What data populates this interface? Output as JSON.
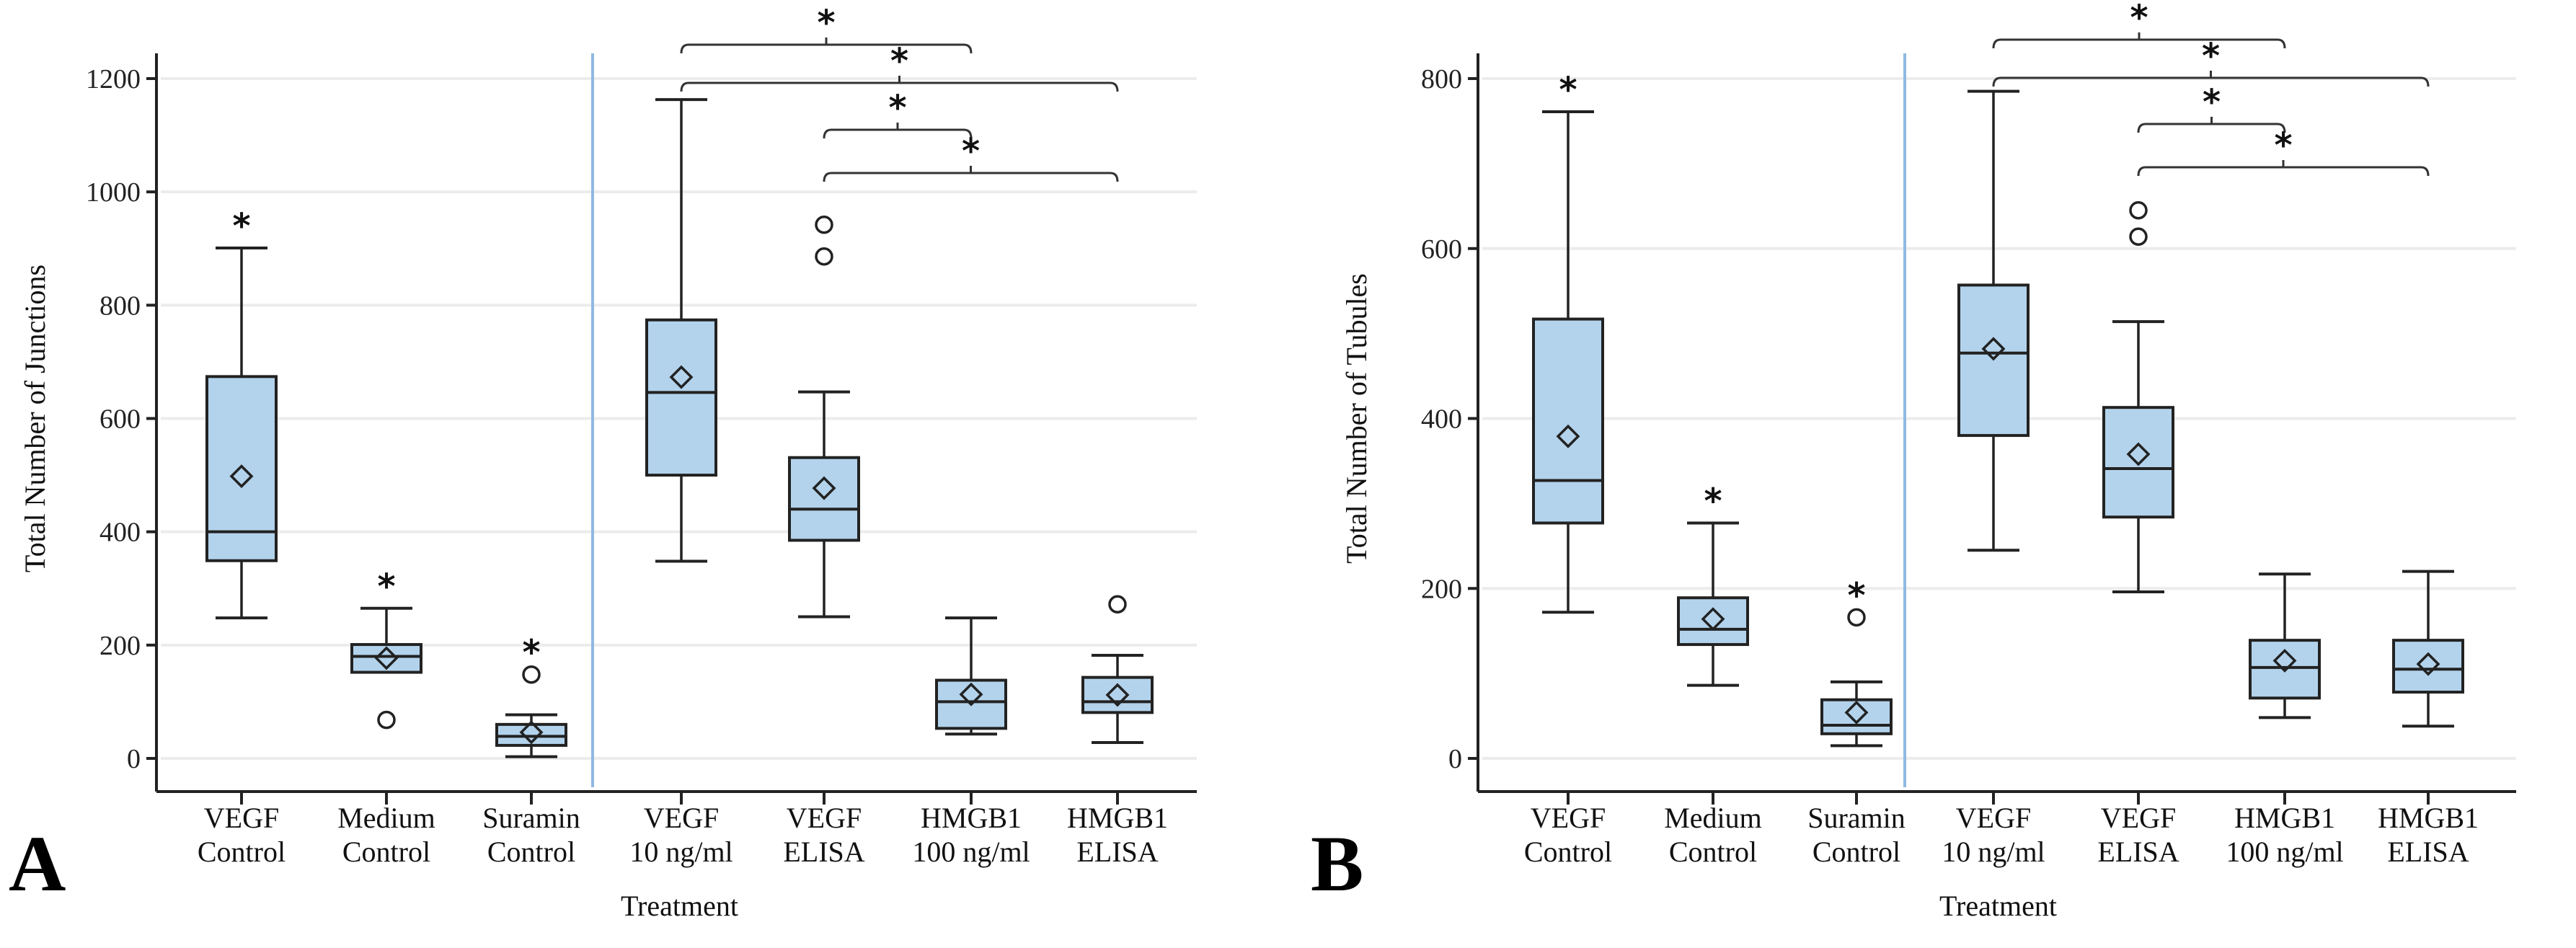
{
  "chart_data": [
    {
      "type": "box",
      "panel_label": "A",
      "title": "",
      "xlabel": "Treatment",
      "ylabel": "Total Number of Junctions",
      "ylim": [
        -60,
        1230
      ],
      "yticks": [
        0,
        200,
        400,
        600,
        800,
        1000,
        1200
      ],
      "grid": true,
      "categories": [
        [
          "VEGF",
          "Control"
        ],
        [
          "Medium",
          "Control"
        ],
        [
          "Suramin",
          "Control"
        ],
        [
          "VEGF",
          "10 ng/ml"
        ],
        [
          "VEGF",
          "ELISA"
        ],
        [
          "HMGB1",
          "100 ng/ml"
        ],
        [
          "HMGB1",
          "ELISA"
        ]
      ],
      "boxes": [
        {
          "min": 248,
          "q1": 349,
          "median": 400,
          "q3": 674,
          "max": 901,
          "mean": 498,
          "outliers": [],
          "marker": "*"
        },
        {
          "min": 152,
          "q1": 152,
          "median": 180,
          "q3": 201,
          "max": 265,
          "mean": 177,
          "outliers": [
            68
          ],
          "marker": "*"
        },
        {
          "min": 3,
          "q1": 23,
          "median": 39,
          "q3": 60,
          "max": 77,
          "mean": 46,
          "outliers": [
            148
          ],
          "marker": "*"
        },
        {
          "min": 348,
          "q1": 500,
          "median": 646,
          "q3": 774,
          "max": 1163,
          "mean": 673,
          "outliers": [],
          "marker": ""
        },
        {
          "min": 250,
          "q1": 385,
          "median": 440,
          "q3": 531,
          "max": 647,
          "mean": 477,
          "outliers": [
            886,
            942
          ],
          "marker": ""
        },
        {
          "min": 43,
          "q1": 53,
          "median": 100,
          "q3": 138,
          "max": 248,
          "mean": 113,
          "outliers": [],
          "marker": ""
        },
        {
          "min": 28,
          "q1": 81,
          "median": 100,
          "q3": 143,
          "max": 182,
          "mean": 112,
          "outliers": [
            272
          ],
          "marker": ""
        }
      ],
      "divider_after_category": 3,
      "comparisons": [
        {
          "from": 3,
          "to": 5,
          "label": "*"
        },
        {
          "from": 3,
          "to": 6,
          "label": "*"
        },
        {
          "from": 4,
          "to": 5,
          "label": "*"
        },
        {
          "from": 4,
          "to": 6,
          "label": "*"
        }
      ]
    },
    {
      "type": "box",
      "panel_label": "B",
      "title": "",
      "xlabel": "Treatment",
      "ylabel": "Total Number of Tubules",
      "ylim": [
        -40,
        820
      ],
      "yticks": [
        0,
        200,
        400,
        600,
        800
      ],
      "grid": true,
      "categories": [
        [
          "VEGF",
          "Control"
        ],
        [
          "Medium",
          "Control"
        ],
        [
          "Suramin",
          "Control"
        ],
        [
          "VEGF",
          "10 ng/ml"
        ],
        [
          "VEGF",
          "ELISA"
        ],
        [
          "HMGB1",
          "100 ng/ml"
        ],
        [
          "HMGB1",
          "ELISA"
        ]
      ],
      "boxes": [
        {
          "min": 172,
          "q1": 277,
          "median": 327,
          "q3": 517,
          "max": 761,
          "mean": 379,
          "outliers": [],
          "marker": "*"
        },
        {
          "min": 86,
          "q1": 134,
          "median": 152,
          "q3": 189,
          "max": 277,
          "mean": 164,
          "outliers": [],
          "marker": "*"
        },
        {
          "min": 15,
          "q1": 29,
          "median": 39,
          "q3": 69,
          "max": 90,
          "mean": 54,
          "outliers": [
            166
          ],
          "marker": "*"
        },
        {
          "min": 245,
          "q1": 380,
          "median": 477,
          "q3": 557,
          "max": 785,
          "mean": 482,
          "outliers": [],
          "marker": ""
        },
        {
          "min": 196,
          "q1": 284,
          "median": 341,
          "q3": 413,
          "max": 514,
          "mean": 358,
          "outliers": [
            614,
            645
          ],
          "marker": ""
        },
        {
          "min": 48,
          "q1": 71,
          "median": 107,
          "q3": 139,
          "max": 217,
          "mean": 115,
          "outliers": [],
          "marker": ""
        },
        {
          "min": 38,
          "q1": 78,
          "median": 105,
          "q3": 139,
          "max": 220,
          "mean": 111,
          "outliers": [],
          "marker": ""
        }
      ],
      "divider_after_category": 3,
      "comparisons": [
        {
          "from": 3,
          "to": 5,
          "label": "*"
        },
        {
          "from": 3,
          "to": 6,
          "label": "*"
        },
        {
          "from": 4,
          "to": 5,
          "label": "*"
        },
        {
          "from": 4,
          "to": 6,
          "label": "*"
        }
      ]
    }
  ],
  "colors": {
    "box_fill": "#b3d3ec",
    "stroke": "#222222",
    "divider": "#8fb9e3",
    "grid": "#ececec"
  }
}
